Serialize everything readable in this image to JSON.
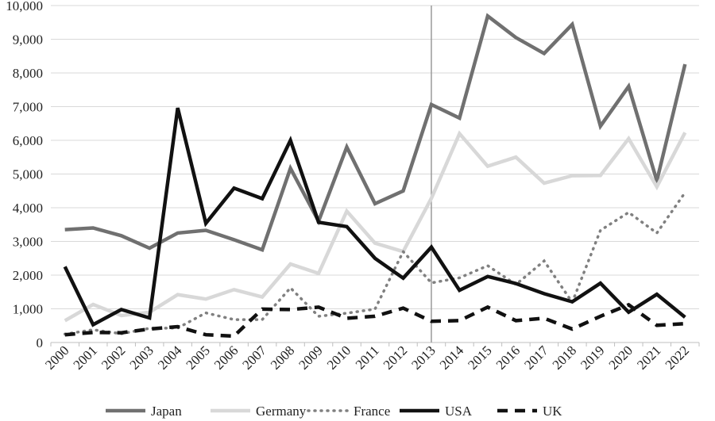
{
  "chart_data": {
    "type": "line",
    "title": "",
    "xlabel": "",
    "ylabel": "",
    "ylim": [
      0,
      10000
    ],
    "yticks": [
      "0",
      "1,000",
      "2,000",
      "3,000",
      "4,000",
      "5,000",
      "6,000",
      "7,000",
      "8,000",
      "9,000",
      "10,000"
    ],
    "grid": "horizontal",
    "legend_position": "bottom",
    "reference_line_at": "2013",
    "categories": [
      "2000",
      "2001",
      "2002",
      "2003",
      "2004",
      "2005",
      "2006",
      "2007",
      "2008",
      "2009",
      "2010",
      "2011",
      "2012",
      "2013",
      "2014",
      "2015",
      "2016",
      "2017",
      "2018",
      "2019",
      "2020",
      "2021",
      "2022"
    ],
    "series": [
      {
        "name": "Japan",
        "color": "#707070",
        "dash": "solid",
        "values": [
          3350,
          3400,
          3170,
          2800,
          3250,
          3330,
          3050,
          2750,
          5170,
          3600,
          5800,
          4120,
          4500,
          7060,
          6660,
          9690,
          9050,
          8580,
          9440,
          6420,
          7600,
          4800,
          8260
        ]
      },
      {
        "name": "Germany",
        "color": "#d8d8d8",
        "dash": "solid",
        "values": [
          650,
          1130,
          800,
          900,
          1420,
          1290,
          1570,
          1350,
          2330,
          2050,
          3900,
          2950,
          2700,
          4280,
          6200,
          5230,
          5500,
          4730,
          4950,
          4960,
          6050,
          4620,
          6230
        ]
      },
      {
        "name": "France",
        "color": "#808080",
        "dash": "dot",
        "values": [
          250,
          380,
          260,
          420,
          430,
          880,
          680,
          680,
          1620,
          780,
          870,
          990,
          2700,
          1770,
          1920,
          2280,
          1720,
          2420,
          1190,
          3330,
          3860,
          3250,
          4450
        ]
      },
      {
        "name": "USA",
        "color": "#111111",
        "dash": "solid",
        "values": [
          2250,
          530,
          980,
          730,
          6960,
          3540,
          4580,
          4270,
          6000,
          3570,
          3440,
          2500,
          1910,
          2830,
          1550,
          1960,
          1750,
          1450,
          1210,
          1760,
          900,
          1430,
          750
        ]
      },
      {
        "name": "UK",
        "color": "#111111",
        "dash": "dash",
        "values": [
          230,
          300,
          290,
          400,
          470,
          230,
          190,
          990,
          980,
          1050,
          720,
          780,
          1020,
          630,
          650,
          1050,
          650,
          720,
          400,
          780,
          1120,
          510,
          560
        ]
      }
    ]
  }
}
